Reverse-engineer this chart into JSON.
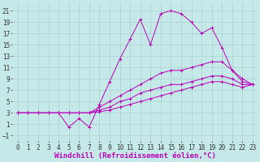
{
  "xlabel": "Windchill (Refroidissement éolien,°C)",
  "background_color": "#c5e8e8",
  "grid_color": "#aed4d4",
  "line_color": "#bb00bb",
  "xlim": [
    -0.5,
    23.5
  ],
  "ylim": [
    -2,
    22.5
  ],
  "xticks": [
    0,
    1,
    2,
    3,
    4,
    5,
    6,
    7,
    8,
    9,
    10,
    11,
    12,
    13,
    14,
    15,
    16,
    17,
    18,
    19,
    20,
    21,
    22,
    23
  ],
  "yticks": [
    -1,
    1,
    3,
    5,
    7,
    9,
    11,
    13,
    15,
    17,
    19,
    21
  ],
  "line1_x": [
    0,
    1,
    2,
    3,
    4,
    5,
    6,
    7,
    8,
    9,
    10,
    11,
    12,
    13,
    14,
    15,
    16,
    17,
    18,
    19,
    20,
    21,
    22,
    23
  ],
  "line1_y": [
    3,
    3,
    3,
    3,
    3,
    0.5,
    2,
    0.5,
    4.5,
    8.5,
    12.5,
    16,
    19.5,
    15,
    20.5,
    21,
    20.5,
    19,
    17,
    18,
    14.5,
    10.5,
    8.5,
    8
  ],
  "line2_x": [
    0,
    1,
    2,
    3,
    4,
    5,
    6,
    7,
    8,
    9,
    10,
    11,
    12,
    13,
    14,
    15,
    16,
    17,
    18,
    19,
    20,
    21,
    22,
    23
  ],
  "line2_y": [
    3,
    3,
    3,
    3,
    3,
    3,
    3,
    3,
    4,
    5,
    6,
    7,
    8,
    9,
    10,
    10.5,
    10.5,
    11,
    11.5,
    12,
    12,
    10.5,
    9,
    8
  ],
  "line3_x": [
    0,
    1,
    2,
    3,
    4,
    5,
    6,
    7,
    8,
    9,
    10,
    11,
    12,
    13,
    14,
    15,
    16,
    17,
    18,
    19,
    20,
    21,
    22,
    23
  ],
  "line3_y": [
    3,
    3,
    3,
    3,
    3,
    3,
    3,
    3,
    3.5,
    4,
    5,
    5.5,
    6.5,
    7,
    7.5,
    8,
    8,
    8.5,
    9,
    9.5,
    9.5,
    9,
    8,
    8
  ],
  "line4_x": [
    0,
    1,
    2,
    3,
    4,
    5,
    6,
    7,
    8,
    9,
    10,
    11,
    12,
    13,
    14,
    15,
    16,
    17,
    18,
    19,
    20,
    21,
    22,
    23
  ],
  "line4_y": [
    3,
    3,
    3,
    3,
    3,
    3,
    3,
    3,
    3.2,
    3.5,
    4,
    4.5,
    5,
    5.5,
    6,
    6.5,
    7,
    7.5,
    8,
    8.5,
    8.5,
    8,
    7.5,
    8
  ],
  "xlabel_fontsize": 6.5,
  "tick_fontsize": 5.5
}
